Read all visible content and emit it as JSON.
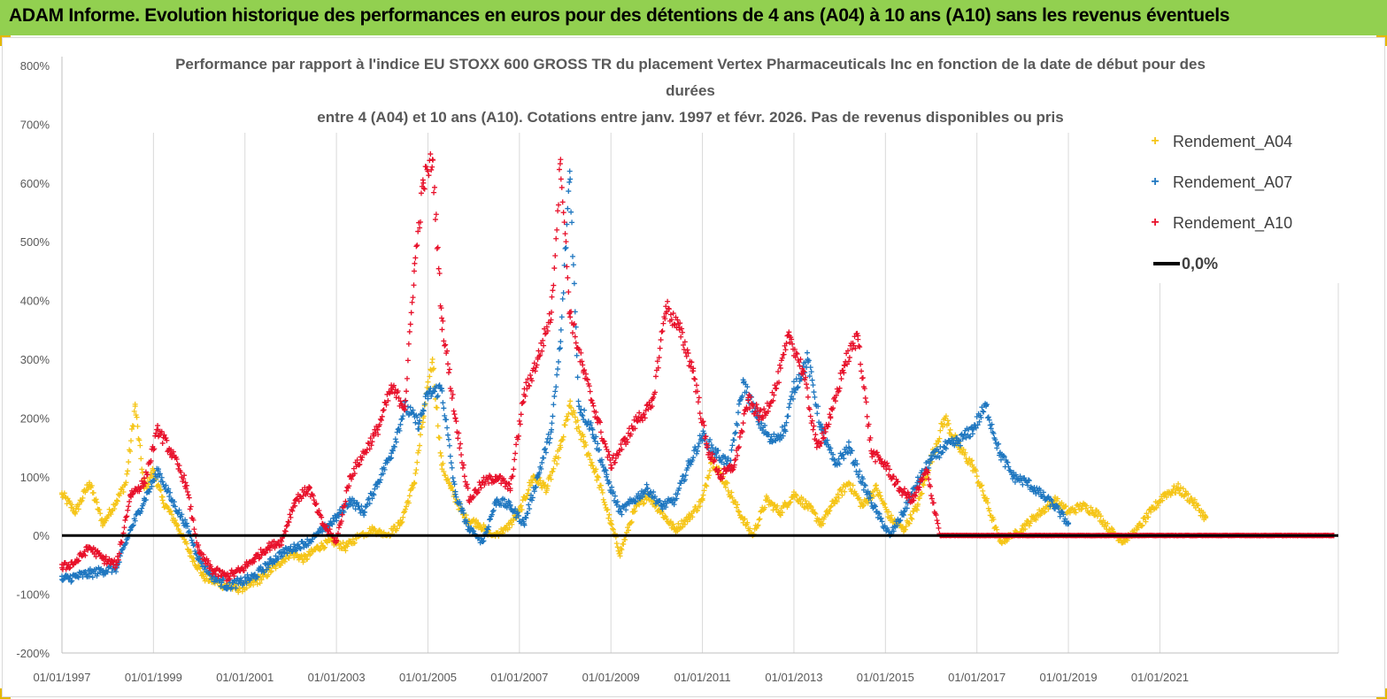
{
  "banner": {
    "title": "ADAM Informe. Evolution historique des performances en euros pour des détentions de 4 ans (A04) à 10 ans (A10) sans les revenus éventuels",
    "background": "#92d050"
  },
  "chart_data": {
    "type": "scatter",
    "title_lines": [
      "Performance par rapport à l'indice EU STOXX 600 GROSS TR  du placement Vertex Pharmaceuticals Inc en fonction de la date de début pour des",
      "durées",
      "entre 4 (A04) et 10 ans (A10). Cotations entre janv. 1997 et févr. 2026. Pas de revenus disponibles ou pris"
    ],
    "xlabel": "",
    "ylabel": "",
    "xlim": [
      1997.0,
      2024.9
    ],
    "ylim": [
      -200,
      800
    ],
    "y_ticks": [
      "800%",
      "700%",
      "600%",
      "500%",
      "400%",
      "300%",
      "200%",
      "100%",
      "0%",
      "-100%",
      "-200%"
    ],
    "y_tick_values": [
      800,
      700,
      600,
      500,
      400,
      300,
      200,
      100,
      0,
      -100,
      -200
    ],
    "x_ticks": [
      "01/01/1997",
      "01/01/1999",
      "01/01/2001",
      "01/01/2003",
      "01/01/2005",
      "01/01/2007",
      "01/01/2009",
      "01/01/2011",
      "01/01/2013",
      "01/01/2015",
      "01/01/2017",
      "01/01/2019",
      "01/01/2021"
    ],
    "x_tick_values": [
      1997,
      1999,
      2001,
      2003,
      2005,
      2007,
      2009,
      2011,
      2013,
      2015,
      2017,
      2019,
      2021
    ],
    "grid_vertical": true,
    "legend_position": "top-right",
    "series": [
      {
        "name": "Rendement_A04",
        "marker": "+",
        "color": "#f5c518",
        "points": [
          [
            1997.0,
            70
          ],
          [
            1997.3,
            40
          ],
          [
            1997.6,
            90
          ],
          [
            1997.9,
            20
          ],
          [
            1998.2,
            60
          ],
          [
            1998.4,
            90
          ],
          [
            1998.6,
            220
          ],
          [
            1998.8,
            80
          ],
          [
            1999.0,
            110
          ],
          [
            1999.2,
            60
          ],
          [
            1999.5,
            20
          ],
          [
            1999.8,
            -30
          ],
          [
            2000.1,
            -70
          ],
          [
            2000.4,
            -80
          ],
          [
            2000.8,
            -90
          ],
          [
            2001.1,
            -85
          ],
          [
            2001.4,
            -70
          ],
          [
            2001.7,
            -50
          ],
          [
            2002.0,
            -30
          ],
          [
            2002.3,
            -40
          ],
          [
            2002.6,
            -20
          ],
          [
            2002.9,
            -10
          ],
          [
            2003.2,
            -20
          ],
          [
            2003.5,
            0
          ],
          [
            2003.8,
            10
          ],
          [
            2004.1,
            0
          ],
          [
            2004.4,
            20
          ],
          [
            2004.7,
            90
          ],
          [
            2004.9,
            200
          ],
          [
            2005.1,
            300
          ],
          [
            2005.3,
            120
          ],
          [
            2005.5,
            80
          ],
          [
            2005.8,
            30
          ],
          [
            2006.1,
            20
          ],
          [
            2006.4,
            0
          ],
          [
            2006.7,
            10
          ],
          [
            2007.0,
            40
          ],
          [
            2007.3,
            100
          ],
          [
            2007.6,
            80
          ],
          [
            2007.9,
            150
          ],
          [
            2008.1,
            220
          ],
          [
            2008.4,
            160
          ],
          [
            2008.7,
            100
          ],
          [
            2009.0,
            20
          ],
          [
            2009.2,
            -30
          ],
          [
            2009.5,
            40
          ],
          [
            2009.8,
            70
          ],
          [
            2010.1,
            40
          ],
          [
            2010.4,
            10
          ],
          [
            2010.7,
            30
          ],
          [
            2011.0,
            60
          ],
          [
            2011.2,
            130
          ],
          [
            2011.5,
            90
          ],
          [
            2011.8,
            40
          ],
          [
            2012.1,
            0
          ],
          [
            2012.4,
            60
          ],
          [
            2012.7,
            40
          ],
          [
            2013.0,
            70
          ],
          [
            2013.3,
            50
          ],
          [
            2013.6,
            20
          ],
          [
            2013.9,
            60
          ],
          [
            2014.2,
            90
          ],
          [
            2014.5,
            50
          ],
          [
            2014.8,
            80
          ],
          [
            2015.1,
            30
          ],
          [
            2015.4,
            10
          ],
          [
            2015.7,
            50
          ],
          [
            2016.0,
            130
          ],
          [
            2016.3,
            200
          ],
          [
            2016.6,
            150
          ],
          [
            2016.9,
            120
          ],
          [
            2017.2,
            60
          ],
          [
            2017.5,
            -10
          ],
          [
            2017.8,
            0
          ],
          [
            2018.1,
            20
          ],
          [
            2018.4,
            40
          ],
          [
            2018.7,
            60
          ],
          [
            2019.0,
            40
          ],
          [
            2019.3,
            50
          ],
          [
            2019.6,
            40
          ],
          [
            2019.9,
            10
          ],
          [
            2020.2,
            -10
          ],
          [
            2020.5,
            10
          ],
          [
            2020.8,
            40
          ],
          [
            2021.1,
            70
          ],
          [
            2021.4,
            80
          ],
          [
            2021.7,
            60
          ],
          [
            2022.0,
            30
          ]
        ]
      },
      {
        "name": "Rendement_A07",
        "marker": "+",
        "color": "#1f77c0",
        "points": [
          [
            1997.0,
            -75
          ],
          [
            1997.3,
            -70
          ],
          [
            1997.6,
            -65
          ],
          [
            1997.9,
            -60
          ],
          [
            1998.2,
            -55
          ],
          [
            1998.5,
            10
          ],
          [
            1998.8,
            60
          ],
          [
            1999.1,
            110
          ],
          [
            1999.4,
            60
          ],
          [
            1999.7,
            20
          ],
          [
            2000.0,
            -40
          ],
          [
            2000.3,
            -70
          ],
          [
            2000.6,
            -85
          ],
          [
            2000.9,
            -80
          ],
          [
            2001.2,
            -70
          ],
          [
            2001.5,
            -50
          ],
          [
            2001.8,
            -30
          ],
          [
            2002.1,
            -20
          ],
          [
            2002.4,
            -10
          ],
          [
            2002.7,
            10
          ],
          [
            2003.0,
            30
          ],
          [
            2003.3,
            60
          ],
          [
            2003.6,
            40
          ],
          [
            2003.9,
            90
          ],
          [
            2004.2,
            140
          ],
          [
            2004.5,
            220
          ],
          [
            2004.8,
            190
          ],
          [
            2005.0,
            240
          ],
          [
            2005.3,
            250
          ],
          [
            2005.6,
            70
          ],
          [
            2005.9,
            10
          ],
          [
            2006.2,
            -10
          ],
          [
            2006.5,
            60
          ],
          [
            2006.8,
            50
          ],
          [
            2007.1,
            20
          ],
          [
            2007.4,
            100
          ],
          [
            2007.7,
            180
          ],
          [
            2007.9,
            330
          ],
          [
            2008.1,
            620
          ],
          [
            2008.3,
            220
          ],
          [
            2008.6,
            180
          ],
          [
            2008.9,
            100
          ],
          [
            2009.2,
            40
          ],
          [
            2009.5,
            60
          ],
          [
            2009.8,
            80
          ],
          [
            2010.1,
            50
          ],
          [
            2010.4,
            60
          ],
          [
            2010.7,
            120
          ],
          [
            2011.0,
            170
          ],
          [
            2011.3,
            140
          ],
          [
            2011.6,
            120
          ],
          [
            2011.9,
            260
          ],
          [
            2012.2,
            200
          ],
          [
            2012.5,
            160
          ],
          [
            2012.8,
            180
          ],
          [
            2013.0,
            250
          ],
          [
            2013.3,
            300
          ],
          [
            2013.6,
            180
          ],
          [
            2013.9,
            120
          ],
          [
            2014.2,
            150
          ],
          [
            2014.5,
            90
          ],
          [
            2014.8,
            40
          ],
          [
            2015.1,
            0
          ],
          [
            2015.4,
            40
          ],
          [
            2015.7,
            90
          ],
          [
            2016.0,
            130
          ],
          [
            2016.3,
            150
          ],
          [
            2016.6,
            160
          ],
          [
            2016.9,
            180
          ],
          [
            2017.2,
            220
          ],
          [
            2017.5,
            140
          ],
          [
            2017.8,
            100
          ],
          [
            2018.1,
            90
          ],
          [
            2018.4,
            70
          ],
          [
            2018.7,
            50
          ],
          [
            2019.0,
            20
          ]
        ]
      },
      {
        "name": "Rendement_A10",
        "marker": "+",
        "color": "#e8102a",
        "points": [
          [
            1997.0,
            -55
          ],
          [
            1997.3,
            -45
          ],
          [
            1997.6,
            -20
          ],
          [
            1997.9,
            -40
          ],
          [
            1998.2,
            -50
          ],
          [
            1998.5,
            70
          ],
          [
            1998.8,
            90
          ],
          [
            1999.1,
            180
          ],
          [
            1999.4,
            140
          ],
          [
            1999.7,
            90
          ],
          [
            2000.0,
            -30
          ],
          [
            2000.3,
            -60
          ],
          [
            2000.6,
            -70
          ],
          [
            2000.9,
            -60
          ],
          [
            2001.2,
            -40
          ],
          [
            2001.5,
            -20
          ],
          [
            2001.8,
            -10
          ],
          [
            2002.1,
            60
          ],
          [
            2002.4,
            80
          ],
          [
            2002.7,
            20
          ],
          [
            2003.0,
            -10
          ],
          [
            2003.3,
            100
          ],
          [
            2003.6,
            140
          ],
          [
            2003.9,
            180
          ],
          [
            2004.2,
            250
          ],
          [
            2004.5,
            220
          ],
          [
            2004.7,
            450
          ],
          [
            2004.9,
            600
          ],
          [
            2005.1,
            640
          ],
          [
            2005.3,
            370
          ],
          [
            2005.6,
            200
          ],
          [
            2005.9,
            60
          ],
          [
            2006.2,
            90
          ],
          [
            2006.5,
            100
          ],
          [
            2006.8,
            80
          ],
          [
            2007.1,
            240
          ],
          [
            2007.4,
            300
          ],
          [
            2007.7,
            380
          ],
          [
            2007.9,
            640
          ],
          [
            2008.1,
            380
          ],
          [
            2008.4,
            280
          ],
          [
            2008.7,
            200
          ],
          [
            2009.0,
            120
          ],
          [
            2009.3,
            160
          ],
          [
            2009.6,
            200
          ],
          [
            2009.9,
            220
          ],
          [
            2010.2,
            390
          ],
          [
            2010.5,
            350
          ],
          [
            2010.8,
            280
          ],
          [
            2011.1,
            150
          ],
          [
            2011.4,
            100
          ],
          [
            2011.7,
            120
          ],
          [
            2012.0,
            230
          ],
          [
            2012.3,
            200
          ],
          [
            2012.6,
            250
          ],
          [
            2012.9,
            340
          ],
          [
            2013.2,
            280
          ],
          [
            2013.5,
            150
          ],
          [
            2013.8,
            200
          ],
          [
            2014.1,
            290
          ],
          [
            2014.4,
            340
          ],
          [
            2014.7,
            140
          ],
          [
            2015.0,
            120
          ],
          [
            2015.3,
            80
          ],
          [
            2015.6,
            60
          ],
          [
            2015.9,
            110
          ],
          [
            2016.2,
            0
          ],
          [
            2018.0,
            0
          ],
          [
            2020.0,
            0
          ],
          [
            2022.0,
            0
          ],
          [
            2024.8,
            0
          ]
        ]
      },
      {
        "name": "0,0%",
        "marker": "line",
        "color": "#000000",
        "points": [
          [
            1997.0,
            0
          ],
          [
            2024.9,
            0
          ]
        ]
      }
    ]
  }
}
